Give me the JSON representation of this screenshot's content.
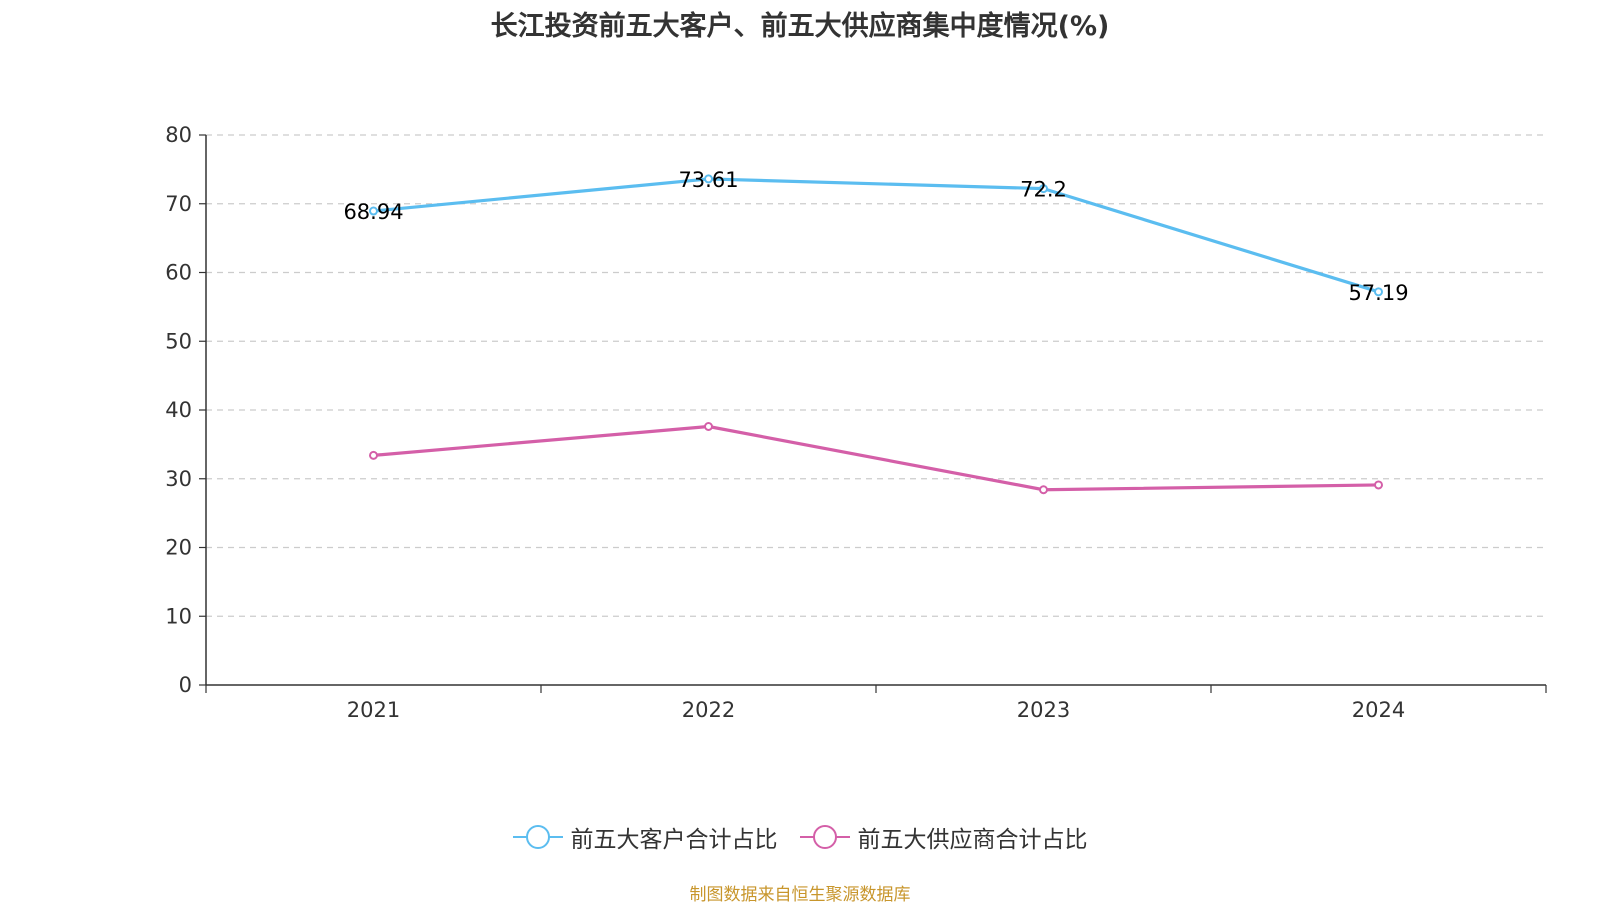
{
  "colors": {
    "customer": "#5bbdf0",
    "supplier": "#d45fa8",
    "axis": "#333333",
    "grid": "#cccccc",
    "source": "#c8962c"
  },
  "chart_data": {
    "type": "line",
    "title": "长江投资前五大客户、前五大供应商集中度情况(%)",
    "categories": [
      "2021",
      "2022",
      "2023",
      "2024"
    ],
    "ylim": [
      0,
      80
    ],
    "yticks": [
      "0",
      "10",
      "20",
      "30",
      "40",
      "50",
      "60",
      "70",
      "80"
    ],
    "grid": "horizontal-dashed",
    "legend_position": "bottom",
    "series": [
      {
        "name": "前五大客户合计占比",
        "values": [
          68.94,
          73.61,
          72.2,
          57.19
        ],
        "data_labels": [
          "68.94",
          "73.61",
          "72.2",
          "57.19"
        ],
        "color": "#5bbdf0"
      },
      {
        "name": "前五大供应商合计占比",
        "values": [
          33.4,
          37.6,
          28.4,
          29.1
        ],
        "data_labels": [],
        "color": "#d45fa8"
      }
    ]
  },
  "source_note": "制图数据来自恒生聚源数据库"
}
